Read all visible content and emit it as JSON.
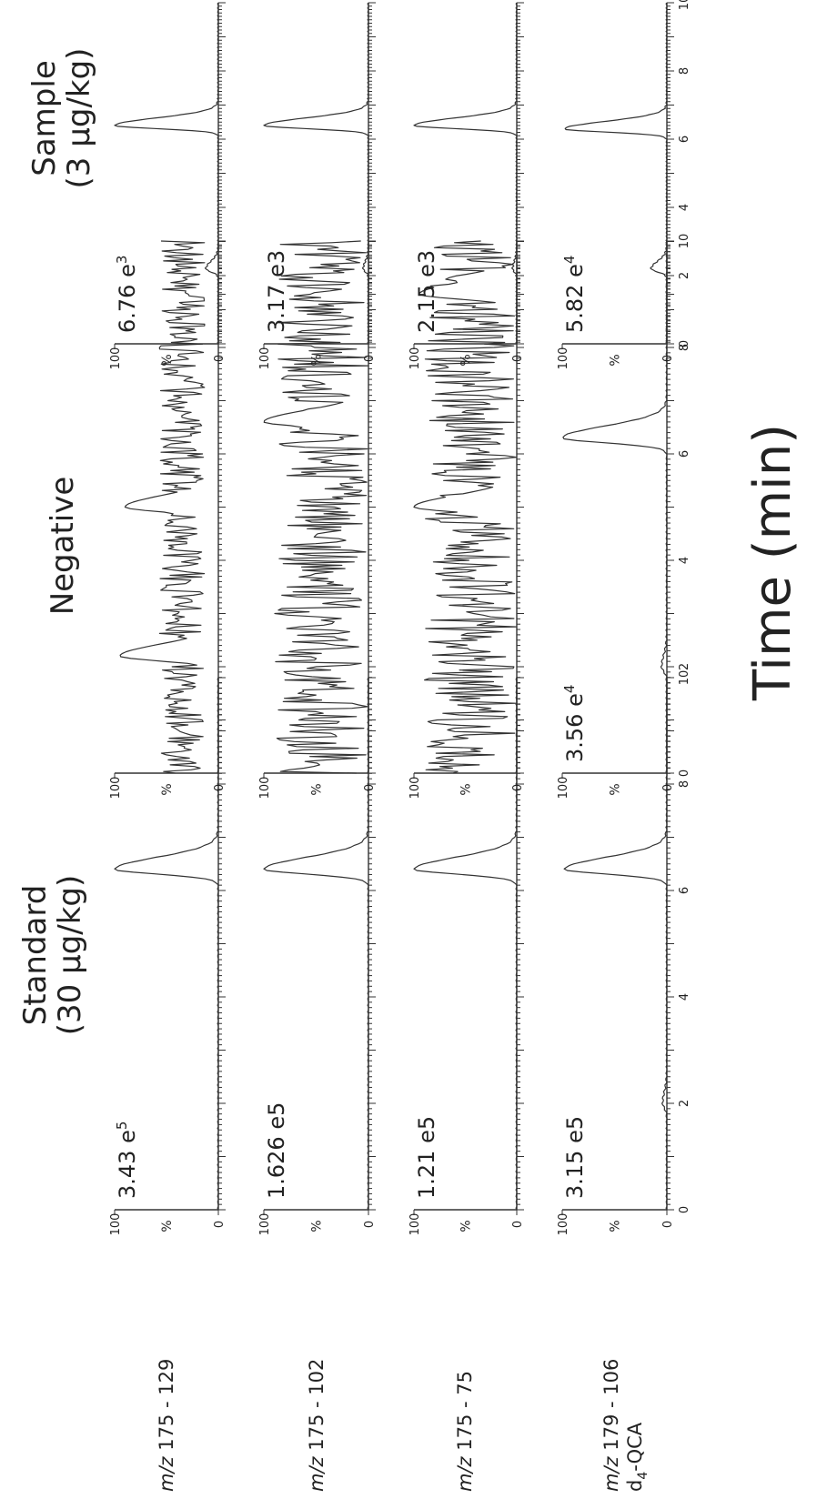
{
  "figure": {
    "column_titles": [
      "Standard\n(30 µg/kg)",
      "Negative",
      "Sample\n(3 µg/kg)"
    ],
    "x_axis_label": "Time (min)",
    "x_ticks": [
      0,
      2,
      4,
      6,
      8,
      10
    ],
    "y_ticks": [
      "0",
      "100"
    ],
    "y_unit_label": "%",
    "row_labels": [
      {
        "prefix": "m/z",
        "text": " 175 - 129"
      },
      {
        "prefix": "m/z",
        "text": " 175 - 102"
      },
      {
        "prefix": "m/z",
        "text": " 175 - 75"
      },
      {
        "prefix": "m/z",
        "text": " 179 - 106"
      }
    ],
    "internal_standard_label": {
      "d": "d",
      "sub": "4",
      "rest": "-QCA"
    }
  },
  "chart_data": [
    {
      "type": "line",
      "panel": "standard-row1",
      "intensity": {
        "base": "3.43 e",
        "exp": "5"
      },
      "xlim": [
        0,
        10
      ],
      "ylim": [
        0,
        100
      ],
      "peaks": [
        {
          "x": 6.4,
          "y": 100
        }
      ]
    },
    {
      "type": "line",
      "panel": "standard-row2",
      "intensity": {
        "base": "1.626 e5",
        "exp": ""
      },
      "xlim": [
        0,
        10
      ],
      "ylim": [
        0,
        100
      ],
      "peaks": [
        {
          "x": 6.4,
          "y": 100
        }
      ]
    },
    {
      "type": "line",
      "panel": "standard-row3",
      "intensity": {
        "base": "1.21 e5",
        "exp": ""
      },
      "xlim": [
        0,
        10
      ],
      "ylim": [
        0,
        100
      ],
      "peaks": [
        {
          "x": 6.4,
          "y": 100
        }
      ]
    },
    {
      "type": "line",
      "panel": "standard-row4",
      "intensity": {
        "base": "3.15 e5",
        "exp": ""
      },
      "xlim": [
        0,
        10
      ],
      "ylim": [
        0,
        100
      ],
      "peaks": [
        {
          "x": 6.4,
          "y": 98
        },
        {
          "x": 2.0,
          "y": 4
        }
      ]
    },
    {
      "type": "line",
      "panel": "negative-row1",
      "intensity": {
        "base": "",
        "exp": ""
      },
      "xlim": [
        0,
        10
      ],
      "ylim": [
        0,
        100
      ],
      "noise": {
        "mean": 35,
        "amp": 22,
        "seed": 11
      },
      "peaks": [
        {
          "x": 2.2,
          "y": 95
        },
        {
          "x": 5.0,
          "y": 90
        }
      ]
    },
    {
      "type": "line",
      "panel": "negative-row2",
      "intensity": {
        "base": "",
        "exp": ""
      },
      "xlim": [
        0,
        10
      ],
      "ylim": [
        0,
        100
      ],
      "noise": {
        "mean": 45,
        "amp": 45,
        "seed": 23
      },
      "peaks": [
        {
          "x": 6.6,
          "y": 100
        }
      ]
    },
    {
      "type": "line",
      "panel": "negative-row3",
      "intensity": {
        "base": "",
        "exp": ""
      },
      "xlim": [
        0,
        10
      ],
      "ylim": [
        0,
        100
      ],
      "noise": {
        "mean": 45,
        "amp": 45,
        "seed": 37
      },
      "peaks": [
        {
          "x": 5.0,
          "y": 100
        },
        {
          "x": 9.0,
          "y": 95
        }
      ]
    },
    {
      "type": "line",
      "panel": "negative-row4",
      "intensity": {
        "base": "3.56 e",
        "exp": "4"
      },
      "xlim": [
        0,
        10
      ],
      "ylim": [
        0,
        100
      ],
      "peaks": [
        {
          "x": 6.3,
          "y": 100
        },
        {
          "x": 2.0,
          "y": 5
        }
      ]
    },
    {
      "type": "line",
      "panel": "sample-row1",
      "intensity": {
        "base": "6.76 e",
        "exp": "3"
      },
      "xlim": [
        0,
        10
      ],
      "ylim": [
        0,
        100
      ],
      "peaks": [
        {
          "x": 6.4,
          "y": 100
        },
        {
          "x": 2.2,
          "y": 12
        }
      ]
    },
    {
      "type": "line",
      "panel": "sample-row2",
      "intensity": {
        "base": "3.17 e3",
        "exp": ""
      },
      "xlim": [
        0,
        10
      ],
      "ylim": [
        0,
        100
      ],
      "peaks": [
        {
          "x": 6.4,
          "y": 100
        },
        {
          "x": 2.2,
          "y": 5
        }
      ]
    },
    {
      "type": "line",
      "panel": "sample-row3",
      "intensity": {
        "base": "2.15 e3",
        "exp": ""
      },
      "xlim": [
        0,
        10
      ],
      "ylim": [
        0,
        100
      ],
      "peaks": [
        {
          "x": 6.4,
          "y": 100
        },
        {
          "x": 2.2,
          "y": 4
        }
      ]
    },
    {
      "type": "line",
      "panel": "sample-row4",
      "intensity": {
        "base": "5.82 e",
        "exp": "4"
      },
      "xlim": [
        0,
        10
      ],
      "ylim": [
        0,
        100
      ],
      "peaks": [
        {
          "x": 6.3,
          "y": 98
        },
        {
          "x": 2.2,
          "y": 15
        }
      ]
    }
  ]
}
